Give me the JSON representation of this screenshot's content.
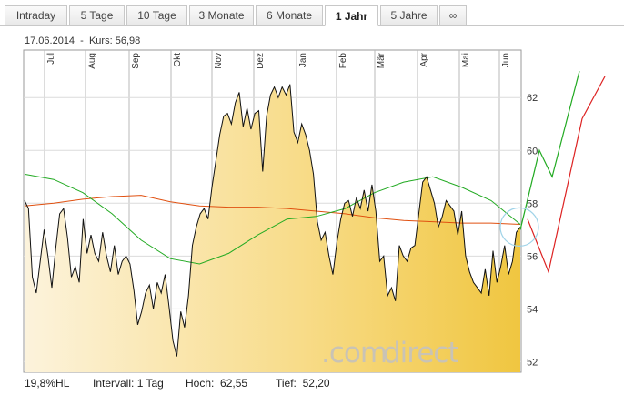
{
  "tabs": [
    {
      "label": "Intraday",
      "active": false
    },
    {
      "label": "5 Tage",
      "active": false
    },
    {
      "label": "10 Tage",
      "active": false
    },
    {
      "label": "3 Monate",
      "active": false
    },
    {
      "label": "6 Monate",
      "active": false
    },
    {
      "label": "1 Jahr",
      "active": true
    },
    {
      "label": "5 Jahre",
      "active": false
    },
    {
      "label": "∞",
      "active": false
    }
  ],
  "info": {
    "date": "17.06.2014",
    "price_label": "Kurs:",
    "price_value": "56,98"
  },
  "footer": {
    "hl": "19,8%HL",
    "interval_label": "Intervall:",
    "interval_value": "1 Tag",
    "high_label": "Hoch:",
    "high_value": "62,55",
    "low_label": "Tief:",
    "low_value": "52,20"
  },
  "watermark": {
    "text_a": ".com",
    "text_b": "direct"
  },
  "colors": {
    "price": "#111111",
    "ma_short": "#22aa22",
    "ma_long": "#e05010",
    "forecast_up": "#22aa22",
    "forecast_down": "#dd2222",
    "fill_light": "#fbf1d6",
    "fill_dark": "#f2cc55",
    "marker": "#9fd3e8"
  },
  "chart_data": {
    "type": "area",
    "x_tick_labels": [
      "Jul",
      "Aug",
      "Sep",
      "Okt",
      "Nov",
      "Dez",
      "Jan",
      "Feb",
      "Mär",
      "Apr",
      "Mai",
      "Jun"
    ],
    "y_ticks": [
      52,
      54,
      56,
      58,
      60,
      62
    ],
    "ylim": [
      51.6,
      63.8
    ],
    "grid": true,
    "series": [
      {
        "role": "price",
        "values": [
          58.1,
          57.8,
          55.2,
          54.6,
          55.8,
          57.0,
          56.0,
          54.8,
          56.3,
          57.6,
          57.8,
          56.7,
          55.2,
          55.6,
          55.0,
          57.4,
          56.1,
          56.8,
          56.1,
          55.8,
          56.9,
          56.0,
          55.4,
          56.4,
          55.3,
          55.8,
          56.0,
          55.7,
          54.7,
          53.4,
          53.9,
          54.6,
          54.9,
          54.0,
          55.0,
          54.6,
          55.3,
          54.1,
          52.8,
          52.2,
          53.9,
          53.3,
          54.5,
          56.4,
          57.1,
          57.6,
          57.8,
          57.4,
          58.6,
          59.6,
          60.6,
          61.3,
          61.4,
          61.0,
          61.8,
          62.2,
          60.9,
          61.6,
          60.8,
          61.4,
          61.5,
          59.2,
          61.3,
          62.1,
          62.4,
          62.0,
          62.4,
          62.1,
          62.5,
          60.7,
          60.3,
          61.0,
          60.6,
          60.0,
          59.1,
          57.3,
          56.6,
          56.9,
          56.0,
          55.3,
          56.5,
          57.4,
          58.0,
          58.1,
          57.5,
          58.2,
          57.8,
          58.5,
          57.7,
          58.7,
          57.7,
          55.8,
          56.0,
          54.5,
          54.8,
          54.3,
          56.4,
          56.0,
          55.8,
          56.3,
          56.4,
          57.6,
          58.8,
          59.0,
          58.5,
          58.0,
          57.1,
          57.5,
          58.1,
          57.9,
          57.7,
          56.8,
          57.7,
          56.0,
          55.4,
          55.0,
          54.8,
          54.6,
          55.5,
          54.5,
          56.2,
          55.0,
          55.6,
          56.4,
          55.3,
          55.8,
          56.9,
          57.1
        ]
      },
      {
        "role": "ma_short",
        "values": [
          59.1,
          58.9,
          58.4,
          57.6,
          56.6,
          55.9,
          55.7,
          56.1,
          56.8,
          57.4,
          57.5,
          57.8,
          58.4,
          58.8,
          59.0,
          58.6,
          58.1,
          57.2
        ]
      },
      {
        "role": "ma_long",
        "values": [
          57.9,
          58.0,
          58.15,
          58.25,
          58.3,
          58.05,
          57.9,
          57.85,
          57.85,
          57.8,
          57.7,
          57.6,
          57.45,
          57.35,
          57.3,
          57.25,
          57.25,
          57.2
        ]
      },
      {
        "role": "forecast_up",
        "values": [
          57.0,
          60.0,
          59.0,
          63.0
        ]
      },
      {
        "role": "forecast_down",
        "values": [
          57.4,
          55.4,
          61.2,
          62.8
        ]
      }
    ]
  }
}
